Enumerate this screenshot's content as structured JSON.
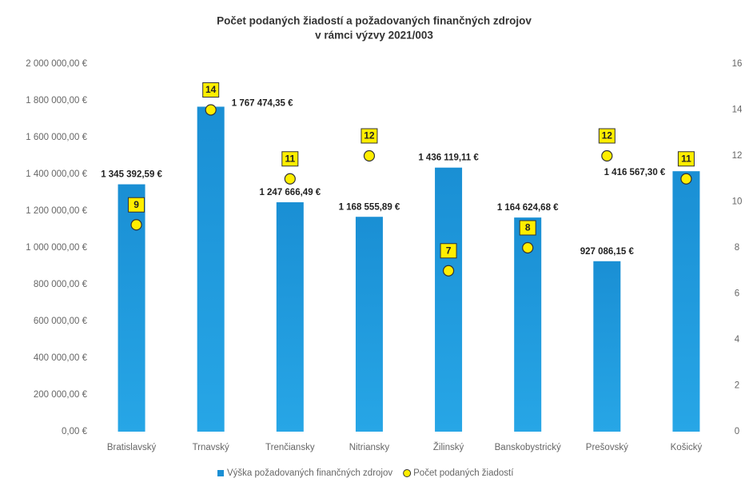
{
  "chart_data": {
    "type": "bar",
    "title": "Počet podaných žiadostí a požadovaných finančných zdrojov",
    "subtitle": "v rámci výzvy 2021/003",
    "categories": [
      "Bratislavský",
      "Trnavský",
      "Trenčiansky",
      "Nitriansky",
      "Žilinský",
      "Banskobystrický",
      "Prešovský",
      "Košický"
    ],
    "series": [
      {
        "name": "Výška požadovaných finančných zdrojov",
        "color": "#1a8fd4",
        "type": "bar",
        "values": [
          1345392.59,
          1767474.35,
          1247666.49,
          1168555.89,
          1436119.11,
          1164624.68,
          927086.15,
          1416567.3
        ],
        "value_labels": [
          "1 345 392,59 €",
          "1 767 474,35 €",
          "1 247 666,49 €",
          "1 168 555,89 €",
          "1 436 119,11 €",
          "1 164 624,68 €",
          "927 086,15 €",
          "1 416 567,30 €"
        ]
      },
      {
        "name": "Počet podaných žiadostí",
        "color": "#ffee00",
        "type": "scatter",
        "axis": "y2",
        "values": [
          9,
          14,
          11,
          12,
          7,
          8,
          12,
          11
        ]
      }
    ],
    "ylim": [
      0,
      2000000
    ],
    "yticks": [
      {
        "value": 0,
        "label": "0,00 €"
      },
      {
        "value": 200000,
        "label": "200 000,00 €"
      },
      {
        "value": 400000,
        "label": "400 000,00 €"
      },
      {
        "value": 600000,
        "label": "600 000,00 €"
      },
      {
        "value": 800000,
        "label": "800 000,00 €"
      },
      {
        "value": 1000000,
        "label": "1 000 000,00 €"
      },
      {
        "value": 1200000,
        "label": "1 200 000,00 €"
      },
      {
        "value": 1400000,
        "label": "1 400 000,00 €"
      },
      {
        "value": 1600000,
        "label": "1 600 000,00 €"
      },
      {
        "value": 1800000,
        "label": "1 800 000,00 €"
      },
      {
        "value": 2000000,
        "label": "2 000 000,00 €"
      }
    ],
    "y2lim": [
      0,
      16
    ],
    "y2ticks": [
      0,
      2,
      4,
      6,
      8,
      10,
      12,
      14,
      16
    ],
    "grid": false,
    "legend": "bottom"
  }
}
